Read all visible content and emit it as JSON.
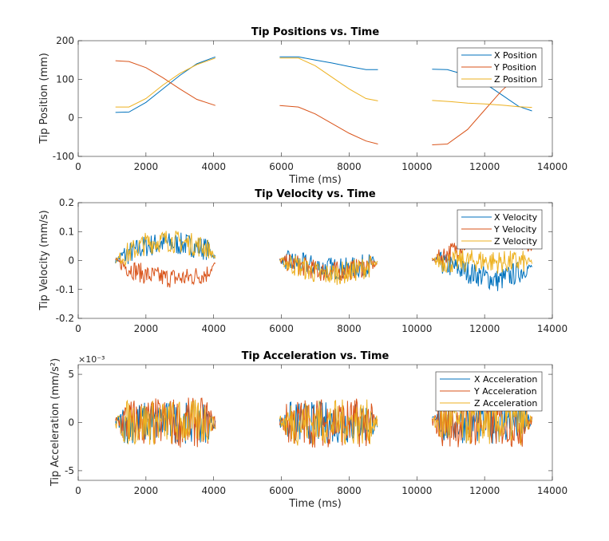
{
  "colors": {
    "x": "#0072BD",
    "y": "#D95319",
    "z": "#EDB120",
    "axis": "#262626"
  },
  "chart_data": [
    {
      "type": "line",
      "title": "Tip Positions vs. Time",
      "xlabel": "Time (ms)",
      "ylabel": "Tip Position (mm)",
      "xlim": [
        0,
        14000
      ],
      "ylim": [
        -100,
        200
      ],
      "xticks": [
        "0",
        "2000",
        "4000",
        "6000",
        "8000",
        "10000",
        "12000",
        "14000"
      ],
      "yticks": [
        "-100",
        "0",
        "100",
        "200"
      ],
      "legend_position": "top-right",
      "segments": [
        [
          1100,
          4050
        ],
        [
          5950,
          8850
        ],
        [
          10450,
          13400
        ]
      ],
      "series": [
        {
          "name": "X Position",
          "color_key": "x",
          "points": [
            [
              1100,
              14
            ],
            [
              1500,
              15
            ],
            [
              2000,
              40
            ],
            [
              2500,
              75
            ],
            [
              3000,
              110
            ],
            [
              3500,
              140
            ],
            [
              4050,
              158
            ],
            [
              5950,
              158
            ],
            [
              6500,
              158
            ],
            [
              7000,
              150
            ],
            [
              7500,
              142
            ],
            [
              8000,
              133
            ],
            [
              8500,
              125
            ],
            [
              8850,
              125
            ],
            [
              10450,
              126
            ],
            [
              10900,
              125
            ],
            [
              11500,
              110
            ],
            [
              12000,
              90
            ],
            [
              12500,
              60
            ],
            [
              13000,
              30
            ],
            [
              13400,
              18
            ]
          ]
        },
        {
          "name": "Y Position",
          "color_key": "y",
          "points": [
            [
              1100,
              148
            ],
            [
              1500,
              146
            ],
            [
              2000,
              130
            ],
            [
              2500,
              104
            ],
            [
              3000,
              75
            ],
            [
              3500,
              48
            ],
            [
              4050,
              32
            ],
            [
              5950,
              32
            ],
            [
              6500,
              28
            ],
            [
              7000,
              10
            ],
            [
              7500,
              -15
            ],
            [
              8000,
              -40
            ],
            [
              8500,
              -60
            ],
            [
              8850,
              -68
            ],
            [
              10450,
              -70
            ],
            [
              10900,
              -68
            ],
            [
              11500,
              -30
            ],
            [
              12000,
              20
            ],
            [
              12500,
              70
            ],
            [
              13000,
              110
            ],
            [
              13400,
              125
            ]
          ]
        },
        {
          "name": "Z Position",
          "color_key": "z",
          "points": [
            [
              1100,
              28
            ],
            [
              1500,
              28
            ],
            [
              2000,
              50
            ],
            [
              2500,
              85
            ],
            [
              3000,
              115
            ],
            [
              3500,
              138
            ],
            [
              4050,
              155
            ],
            [
              5950,
              155
            ],
            [
              6500,
              155
            ],
            [
              7000,
              135
            ],
            [
              7500,
              105
            ],
            [
              8000,
              75
            ],
            [
              8500,
              50
            ],
            [
              8850,
              44
            ],
            [
              10450,
              45
            ],
            [
              11000,
              42
            ],
            [
              11500,
              38
            ],
            [
              12000,
              36
            ],
            [
              12500,
              33
            ],
            [
              13000,
              29
            ],
            [
              13400,
              27
            ]
          ]
        }
      ]
    },
    {
      "type": "line",
      "title": "Tip Velocity vs. Time",
      "xlabel": "",
      "ylabel": "Tip Velocity (mm/s)",
      "xlim": [
        0,
        14000
      ],
      "ylim": [
        -0.2,
        0.2
      ],
      "xticks": [
        "0",
        "2000",
        "4000",
        "6000",
        "8000",
        "10000",
        "12000",
        "14000"
      ],
      "yticks": [
        "-0.2",
        "-0.1",
        "0",
        "0.1",
        "0.2"
      ],
      "legend_position": "top-right",
      "segments": [
        [
          1100,
          4050
        ],
        [
          5950,
          8850
        ],
        [
          10450,
          13400
        ]
      ],
      "series": [
        {
          "name": "X Velocity",
          "color_key": "x",
          "mean": [
            [
              1100,
              0
            ],
            [
              1400,
              0.02
            ],
            [
              2000,
              0.05
            ],
            [
              2500,
              0.06
            ],
            [
              3200,
              0.055
            ],
            [
              3800,
              0.04
            ],
            [
              4050,
              0.01
            ],
            [
              5950,
              0
            ],
            [
              6500,
              -0.01
            ],
            [
              7200,
              -0.025
            ],
            [
              8000,
              -0.03
            ],
            [
              8850,
              -0.005
            ],
            [
              10450,
              0
            ],
            [
              11000,
              -0.02
            ],
            [
              11800,
              -0.05
            ],
            [
              12400,
              -0.07
            ],
            [
              13000,
              -0.04
            ],
            [
              13400,
              -0.02
            ]
          ],
          "noise": 0.04
        },
        {
          "name": "Y Velocity",
          "color_key": "y",
          "mean": [
            [
              1100,
              0
            ],
            [
              1400,
              -0.02
            ],
            [
              2000,
              -0.05
            ],
            [
              2600,
              -0.06
            ],
            [
              3200,
              -0.06
            ],
            [
              3800,
              -0.045
            ],
            [
              4050,
              -0.01
            ],
            [
              5950,
              0
            ],
            [
              6500,
              -0.015
            ],
            [
              7200,
              -0.04
            ],
            [
              8000,
              -0.035
            ],
            [
              8850,
              -0.01
            ],
            [
              10450,
              0
            ],
            [
              11000,
              0.03
            ],
            [
              11800,
              0.08
            ],
            [
              12400,
              0.09
            ],
            [
              13000,
              0.07
            ],
            [
              13400,
              0.04
            ]
          ],
          "noise": 0.035
        },
        {
          "name": "Z Velocity",
          "color_key": "z",
          "mean": [
            [
              1100,
              0
            ],
            [
              1400,
              0.02
            ],
            [
              2000,
              0.06
            ],
            [
              2600,
              0.07
            ],
            [
              3200,
              0.06
            ],
            [
              3800,
              0.045
            ],
            [
              4050,
              0.01
            ],
            [
              5950,
              0
            ],
            [
              6500,
              -0.02
            ],
            [
              7200,
              -0.05
            ],
            [
              8000,
              -0.04
            ],
            [
              8850,
              -0.01
            ],
            [
              10450,
              0
            ],
            [
              11000,
              -0.005
            ],
            [
              11800,
              0
            ],
            [
              12400,
              -0.005
            ],
            [
              13000,
              -0.005
            ],
            [
              13400,
              -0.005
            ]
          ],
          "noise": 0.04
        }
      ]
    },
    {
      "type": "line",
      "title": "Tip Acceleration vs. Time",
      "xlabel": "Time (ms)",
      "ylabel": "Tip Acceleration (mm/s²)",
      "exponent_label": "×10⁻³",
      "xlim": [
        0,
        14000
      ],
      "ylim": [
        -6,
        6
      ],
      "xticks": [
        "0",
        "2000",
        "4000",
        "6000",
        "8000",
        "10000",
        "12000",
        "14000"
      ],
      "yticks": [
        "-5",
        "0",
        "5"
      ],
      "legend_position": "top-right",
      "segments": [
        [
          1100,
          4050
        ],
        [
          5950,
          8850
        ],
        [
          10450,
          13400
        ]
      ],
      "series": [
        {
          "name": "X Acceleration",
          "color_key": "x",
          "amplitude": 2.2
        },
        {
          "name": "Y Acceleration",
          "color_key": "y",
          "amplitude": 2.6
        },
        {
          "name": "Z Acceleration",
          "color_key": "z",
          "amplitude": 2.4
        }
      ]
    }
  ]
}
